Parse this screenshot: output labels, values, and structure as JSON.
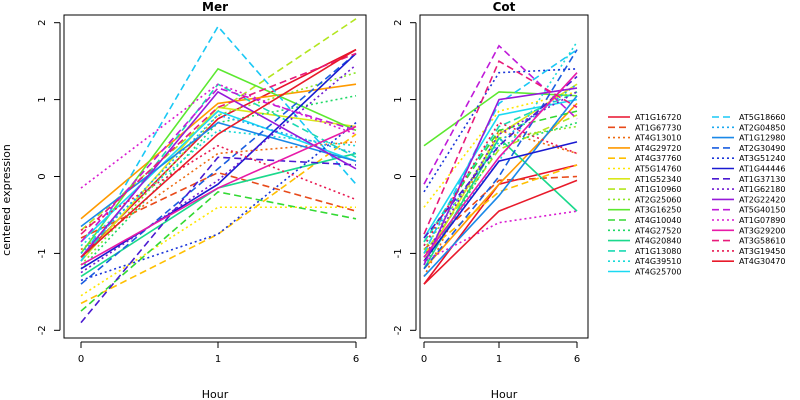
{
  "chart_data": {
    "type": "line",
    "ylabel": "centered expression",
    "xlabel": "Hour",
    "x": [
      "0",
      "1",
      "6"
    ],
    "ylim": [
      -2.1,
      2.1
    ],
    "yticks": [
      -2,
      -1,
      0,
      1,
      2
    ],
    "grid": false,
    "legend_position": "right",
    "panels": [
      {
        "title": "Mer",
        "series": [
          {
            "name": "AT1G16720",
            "values": [
              -1.05,
              0.75,
              1.65
            ]
          },
          {
            "name": "AT1G67730",
            "values": [
              -0.8,
              0.05,
              -0.45
            ]
          },
          {
            "name": "AT4G13010",
            "values": [
              -0.95,
              0.3,
              0.45
            ]
          },
          {
            "name": "AT4G29720",
            "values": [
              -0.55,
              0.95,
              1.2
            ]
          },
          {
            "name": "AT4G37760",
            "values": [
              -1.65,
              -0.75,
              0.55
            ]
          },
          {
            "name": "AT5G14760",
            "values": [
              -1.55,
              -0.4,
              -0.4
            ]
          },
          {
            "name": "AT1G52340",
            "values": [
              -1.1,
              0.9,
              0.65
            ]
          },
          {
            "name": "AT1G10960",
            "values": [
              -0.7,
              0.85,
              2.05
            ]
          },
          {
            "name": "AT2G25060",
            "values": [
              -1.15,
              0.8,
              1.35
            ]
          },
          {
            "name": "AT3G16250",
            "values": [
              -1.0,
              1.4,
              0.6
            ]
          },
          {
            "name": "AT4G10040",
            "values": [
              -1.75,
              -0.2,
              -0.55
            ]
          },
          {
            "name": "AT4G27520",
            "values": [
              -1.2,
              0.7,
              1.05
            ]
          },
          {
            "name": "AT4G20840",
            "values": [
              -1.3,
              -0.15,
              0.3
            ]
          },
          {
            "name": "AT1G13080",
            "values": [
              -1.1,
              1.2,
              0.25
            ]
          },
          {
            "name": "AT4G39510",
            "values": [
              -0.9,
              0.6,
              0.4
            ]
          },
          {
            "name": "AT4G25700",
            "values": [
              -0.85,
              0.85,
              0.2
            ]
          },
          {
            "name": "AT5G18660",
            "values": [
              -1.1,
              1.95,
              -0.1
            ]
          },
          {
            "name": "AT2G04850",
            "values": [
              -1.0,
              0.8,
              0.3
            ]
          },
          {
            "name": "AT1G12980",
            "values": [
              -0.65,
              0.7,
              0.2
            ]
          },
          {
            "name": "AT2G30490",
            "values": [
              -1.4,
              0.1,
              1.6
            ]
          },
          {
            "name": "AT3G51240",
            "values": [
              -1.35,
              -0.75,
              0.7
            ]
          },
          {
            "name": "AT1G44446",
            "values": [
              -1.2,
              -0.1,
              1.6
            ]
          },
          {
            "name": "AT1G37130",
            "values": [
              -1.9,
              0.25,
              0.15
            ]
          },
          {
            "name": "AT1G62180",
            "values": [
              -1.25,
              -0.05,
              1.45
            ]
          },
          {
            "name": "AT2G22420",
            "values": [
              -1.05,
              1.1,
              0.1
            ]
          },
          {
            "name": "AT5G40150",
            "values": [
              -0.85,
              1.15,
              0.6
            ]
          },
          {
            "name": "AT1G07890",
            "values": [
              -0.15,
              1.2,
              0.55
            ]
          },
          {
            "name": "AT3G29200",
            "values": [
              -1.15,
              -0.15,
              0.65
            ]
          },
          {
            "name": "AT3G58610",
            "values": [
              -0.75,
              0.9,
              1.6
            ]
          },
          {
            "name": "AT3G19450",
            "values": [
              -0.7,
              0.4,
              -0.3
            ]
          },
          {
            "name": "AT4G30470",
            "values": [
              -1.05,
              0.55,
              1.65
            ]
          }
        ]
      },
      {
        "title": "Cot",
        "series": [
          {
            "name": "AT1G16720",
            "values": [
              -1.4,
              -0.1,
              0.15
            ]
          },
          {
            "name": "AT1G67730",
            "values": [
              -0.95,
              -0.05,
              0.0
            ]
          },
          {
            "name": "AT4G13010",
            "values": [
              -1.3,
              0.6,
              0.3
            ]
          },
          {
            "name": "AT4G29720",
            "values": [
              -1.2,
              -0.1,
              0.95
            ]
          },
          {
            "name": "AT4G37760",
            "values": [
              -1.0,
              -0.2,
              0.15
            ]
          },
          {
            "name": "AT5G14760",
            "values": [
              -0.4,
              0.85,
              1.1
            ]
          },
          {
            "name": "AT1G52340",
            "values": [
              -1.1,
              0.55,
              1.2
            ]
          },
          {
            "name": "AT1G10960",
            "values": [
              -1.0,
              0.35,
              0.8
            ]
          },
          {
            "name": "AT2G25060",
            "values": [
              -0.95,
              0.5,
              0.65
            ]
          },
          {
            "name": "AT3G16250",
            "values": [
              0.4,
              1.1,
              1.05
            ]
          },
          {
            "name": "AT4G10040",
            "values": [
              -0.85,
              0.6,
              0.85
            ]
          },
          {
            "name": "AT4G27520",
            "values": [
              -1.15,
              0.4,
              0.7
            ]
          },
          {
            "name": "AT4G20840",
            "values": [
              -1.2,
              0.5,
              -0.45
            ]
          },
          {
            "name": "AT1G13080",
            "values": [
              -0.85,
              0.65,
              1.1
            ]
          },
          {
            "name": "AT4G39510",
            "values": [
              -1.05,
              0.2,
              1.75
            ]
          },
          {
            "name": "AT4G25700",
            "values": [
              -0.8,
              0.8,
              1.0
            ]
          },
          {
            "name": "AT5G18660",
            "values": [
              -1.0,
              0.95,
              1.65
            ]
          },
          {
            "name": "AT2G04850",
            "values": [
              -0.9,
              0.45,
              1.2
            ]
          },
          {
            "name": "AT1G12980",
            "values": [
              -1.3,
              -0.25,
              1.05
            ]
          },
          {
            "name": "AT2G30490",
            "values": [
              -1.2,
              0.0,
              1.65
            ]
          },
          {
            "name": "AT3G51240",
            "values": [
              -0.2,
              1.35,
              1.4
            ]
          },
          {
            "name": "AT1G44446",
            "values": [
              -1.1,
              0.2,
              0.45
            ]
          },
          {
            "name": "AT1G37130",
            "values": [
              -0.8,
              0.4,
              1.3
            ]
          },
          {
            "name": "AT1G62180",
            "values": [
              -1.05,
              0.55,
              1.1
            ]
          },
          {
            "name": "AT2G22420",
            "values": [
              -1.15,
              1.0,
              1.15
            ]
          },
          {
            "name": "AT5G40150",
            "values": [
              -0.1,
              1.7,
              0.75
            ]
          },
          {
            "name": "AT1G07890",
            "values": [
              -1.1,
              -0.6,
              -0.45
            ]
          },
          {
            "name": "AT3G29200",
            "values": [
              -1.05,
              0.25,
              1.35
            ]
          },
          {
            "name": "AT3G58610",
            "values": [
              -0.75,
              1.5,
              0.9
            ]
          },
          {
            "name": "AT3G19450",
            "values": [
              -0.9,
              0.7,
              0.3
            ]
          },
          {
            "name": "AT4G30470",
            "values": [
              -1.4,
              -0.45,
              -0.05
            ]
          }
        ]
      }
    ],
    "legend": [
      {
        "name": "AT1G16720",
        "color": "#e8112d",
        "dash": "solid"
      },
      {
        "name": "AT1G67730",
        "color": "#e84a1a",
        "dash": "dashed"
      },
      {
        "name": "AT4G13010",
        "color": "#ee6a10",
        "dash": "dotted"
      },
      {
        "name": "AT4G29720",
        "color": "#ff9a00",
        "dash": "solid"
      },
      {
        "name": "AT4G37760",
        "color": "#ffbf00",
        "dash": "dashed"
      },
      {
        "name": "AT5G14760",
        "color": "#ffe600",
        "dash": "dotted"
      },
      {
        "name": "AT1G52340",
        "color": "#d9e81a",
        "dash": "solid"
      },
      {
        "name": "AT1G10960",
        "color": "#b3e61f",
        "dash": "dashed"
      },
      {
        "name": "AT2G25060",
        "color": "#8ce62a",
        "dash": "dotted"
      },
      {
        "name": "AT3G16250",
        "color": "#5ce830",
        "dash": "solid"
      },
      {
        "name": "AT4G10040",
        "color": "#33d933",
        "dash": "dashed"
      },
      {
        "name": "AT4G27520",
        "color": "#1fd966",
        "dash": "dotted"
      },
      {
        "name": "AT4G20840",
        "color": "#1ad98c",
        "dash": "solid"
      },
      {
        "name": "AT1G13080",
        "color": "#1ad9b3",
        "dash": "dashed"
      },
      {
        "name": "AT4G39510",
        "color": "#1ad9d9",
        "dash": "dotted"
      },
      {
        "name": "AT4G25700",
        "color": "#1ad9f2",
        "dash": "solid"
      },
      {
        "name": "AT5G18660",
        "color": "#1ac8f5",
        "dash": "dashed"
      },
      {
        "name": "AT2G04850",
        "color": "#1aa8f0",
        "dash": "dotted"
      },
      {
        "name": "AT1G12980",
        "color": "#1a88e8",
        "dash": "solid"
      },
      {
        "name": "AT2G30490",
        "color": "#1a5ee0",
        "dash": "dashed"
      },
      {
        "name": "AT3G51240",
        "color": "#1a35d9",
        "dash": "dotted"
      },
      {
        "name": "AT1G44446",
        "color": "#1a1ad1",
        "dash": "solid"
      },
      {
        "name": "AT1G37130",
        "color": "#4a1ad1",
        "dash": "dashed"
      },
      {
        "name": "AT1G62180",
        "color": "#701ad1",
        "dash": "dotted"
      },
      {
        "name": "AT2G22420",
        "color": "#961ad9",
        "dash": "solid"
      },
      {
        "name": "AT5G40150",
        "color": "#bf1ad9",
        "dash": "dashed"
      },
      {
        "name": "AT1G07890",
        "color": "#d91ad1",
        "dash": "dotted"
      },
      {
        "name": "AT3G29200",
        "color": "#e81aa8",
        "dash": "solid"
      },
      {
        "name": "AT3G58610",
        "color": "#e81a7a",
        "dash": "dashed"
      },
      {
        "name": "AT3G19450",
        "color": "#e81a52",
        "dash": "dotted"
      },
      {
        "name": "AT4G30470",
        "color": "#e81a2a",
        "dash": "solid"
      }
    ]
  }
}
